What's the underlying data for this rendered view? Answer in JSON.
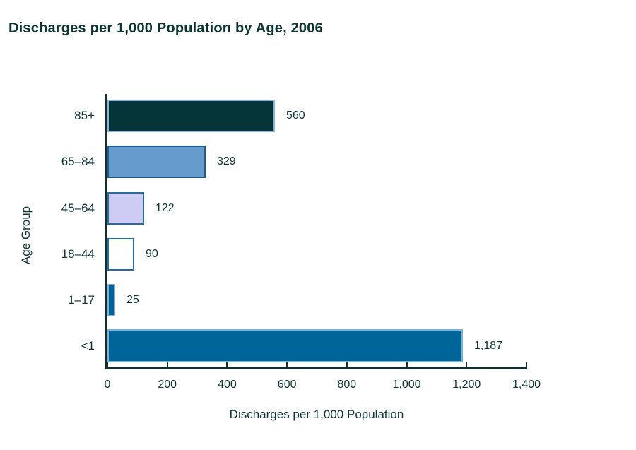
{
  "page": {
    "background": "#ffffff"
  },
  "chart_data": {
    "type": "bar",
    "orientation": "horizontal",
    "title": "Discharges per 1,000 Population by Age, 2006",
    "xlabel": "Discharges per 1,000 Population",
    "ylabel": "Age Group",
    "categories": [
      "85+",
      "65–84",
      "45–64",
      "18–44",
      "1–17",
      "<1"
    ],
    "values": [
      560,
      329,
      122,
      90,
      25,
      1187
    ],
    "value_labels": [
      "560",
      "329",
      "122",
      "90",
      "25",
      "1,187"
    ],
    "xlim": [
      0,
      1400
    ],
    "xticks": [
      0,
      200,
      400,
      600,
      800,
      1000,
      1200,
      1400
    ],
    "xtick_labels": [
      "0",
      "200",
      "400",
      "600",
      "800",
      "1,000",
      "1,200",
      "1,400"
    ],
    "grid": false,
    "legend": "none",
    "colors": {
      "bar_fills": [
        "#053538",
        "#669bce",
        "#ccccf5",
        "#ffffff",
        "#006699",
        "#006699"
      ],
      "bar_borders": [
        "#8ab4da",
        "#1e5c8e",
        "#2a6a96",
        "#1e6fa8",
        "#7fb0d8",
        "#7fb0d8"
      ],
      "axis_line": "#122f2e",
      "text": "#0e3434"
    }
  }
}
